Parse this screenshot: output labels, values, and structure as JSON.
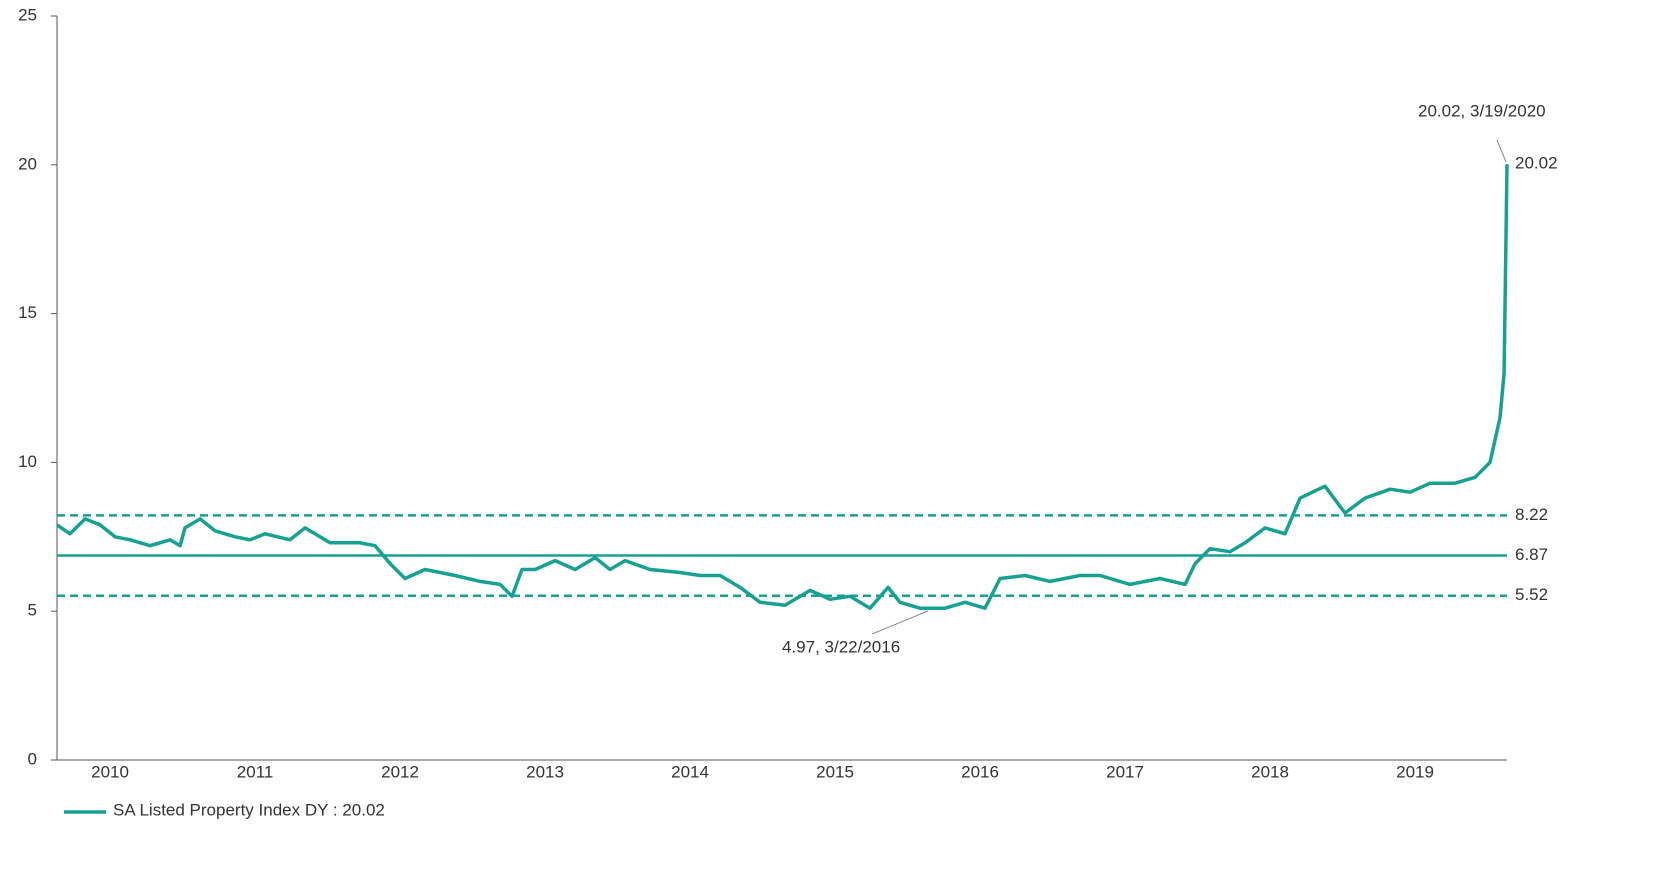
{
  "chart_data": {
    "type": "line",
    "x": [
      2009.634,
      2009.724,
      2009.828,
      2009.931,
      2010.034,
      2010.138,
      2010.276,
      2010.414,
      2010.483,
      2010.517,
      2010.621,
      2010.724,
      2010.862,
      2010.966,
      2011.069,
      2011.241,
      2011.345,
      2011.517,
      2011.724,
      2011.828,
      2011.931,
      2012.034,
      2012.172,
      2012.276,
      2012.379,
      2012.552,
      2012.69,
      2012.772,
      2012.841,
      2012.931,
      2013.069,
      2013.207,
      2013.345,
      2013.448,
      2013.552,
      2013.724,
      2013.931,
      2014.069,
      2014.207,
      2014.345,
      2014.483,
      2014.655,
      2014.828,
      2014.966,
      2015.103,
      2015.241,
      2015.366,
      2015.448,
      2015.586,
      2015.759,
      2015.897,
      2016.034,
      2016.138,
      2016.31,
      2016.483,
      2016.69,
      2016.828,
      2017.034,
      2017.241,
      2017.414,
      2017.483,
      2017.586,
      2017.724,
      2017.828,
      2017.966,
      2018.103,
      2018.207,
      2018.379,
      2018.517,
      2018.655,
      2018.828,
      2018.966,
      2019.103,
      2019.276,
      2019.414,
      2019.517,
      2019.586,
      2019.614,
      2019.634
    ],
    "series": [
      {
        "name": "SA Listed Property Index DY : 20.02",
        "color": "#16a192",
        "values": [
          7.9,
          7.6,
          8.1,
          7.9,
          7.5,
          7.4,
          7.2,
          7.4,
          7.2,
          7.8,
          8.1,
          7.7,
          7.5,
          7.4,
          7.6,
          7.4,
          7.8,
          7.3,
          7.3,
          7.2,
          6.6,
          6.1,
          6.4,
          6.3,
          6.2,
          6.0,
          5.9,
          5.5,
          6.4,
          6.4,
          6.7,
          6.4,
          6.8,
          6.4,
          6.7,
          6.4,
          6.3,
          6.2,
          6.2,
          5.8,
          5.3,
          5.2,
          5.7,
          5.4,
          5.5,
          5.1,
          5.8,
          5.3,
          5.1,
          5.1,
          5.3,
          5.1,
          6.1,
          6.2,
          6.0,
          6.2,
          6.2,
          5.9,
          6.1,
          5.9,
          6.6,
          7.1,
          7.0,
          7.3,
          7.8,
          7.6,
          8.8,
          9.2,
          8.3,
          8.8,
          9.1,
          9.0,
          9.3,
          9.3,
          9.5,
          10.0,
          11.5,
          13,
          20.02
        ]
      }
    ],
    "xlim": [
      2009.634,
      2019.634
    ],
    "xticks": [
      2010,
      2011,
      2012,
      2013,
      2014,
      2015,
      2016,
      2017,
      2018,
      2019
    ],
    "ylim": [
      0,
      25
    ],
    "yticks": [
      0,
      5,
      10,
      15,
      20,
      25
    ],
    "reference_lines": [
      {
        "value": 8.22,
        "style": "dashed"
      },
      {
        "value": 6.87,
        "style": "solid"
      },
      {
        "value": 5.52,
        "style": "dashed"
      }
    ],
    "annotations": [
      "20.02, 3/19/2020",
      "4.97, 3/22/2016"
    ],
    "grid": false
  }
}
